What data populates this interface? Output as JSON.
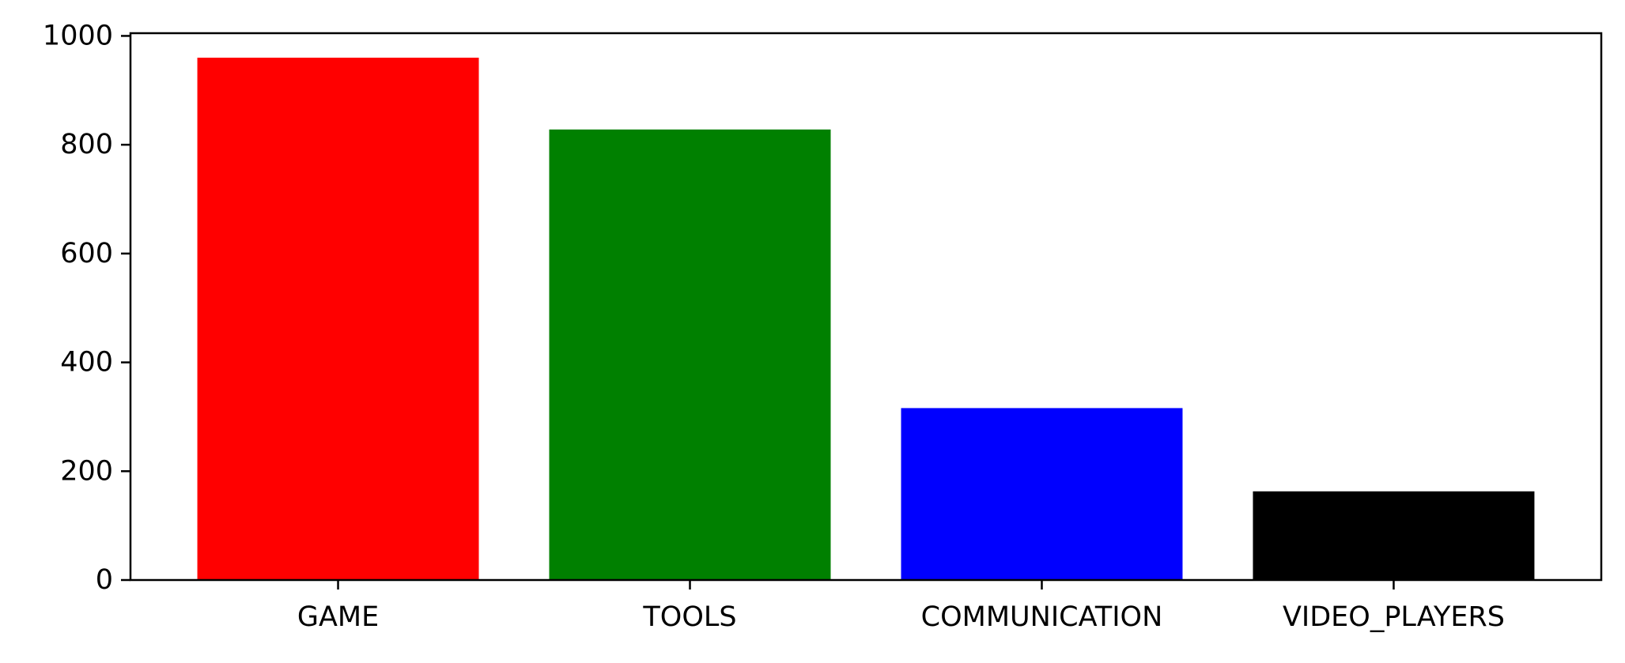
{
  "chart_data": {
    "type": "bar",
    "title": "",
    "xlabel": "",
    "ylabel": "",
    "categories": [
      "GAME",
      "TOOLS",
      "COMMUNICATION",
      "VIDEO_PLAYERS"
    ],
    "values": [
      960,
      828,
      316,
      163
    ],
    "colors": [
      "#ff0000",
      "#008000",
      "#0000ff",
      "#000000"
    ],
    "ylim": [
      0,
      1005
    ],
    "yticks": [
      0,
      200,
      400,
      600,
      800,
      1000
    ],
    "grid": false,
    "legend": "none"
  }
}
